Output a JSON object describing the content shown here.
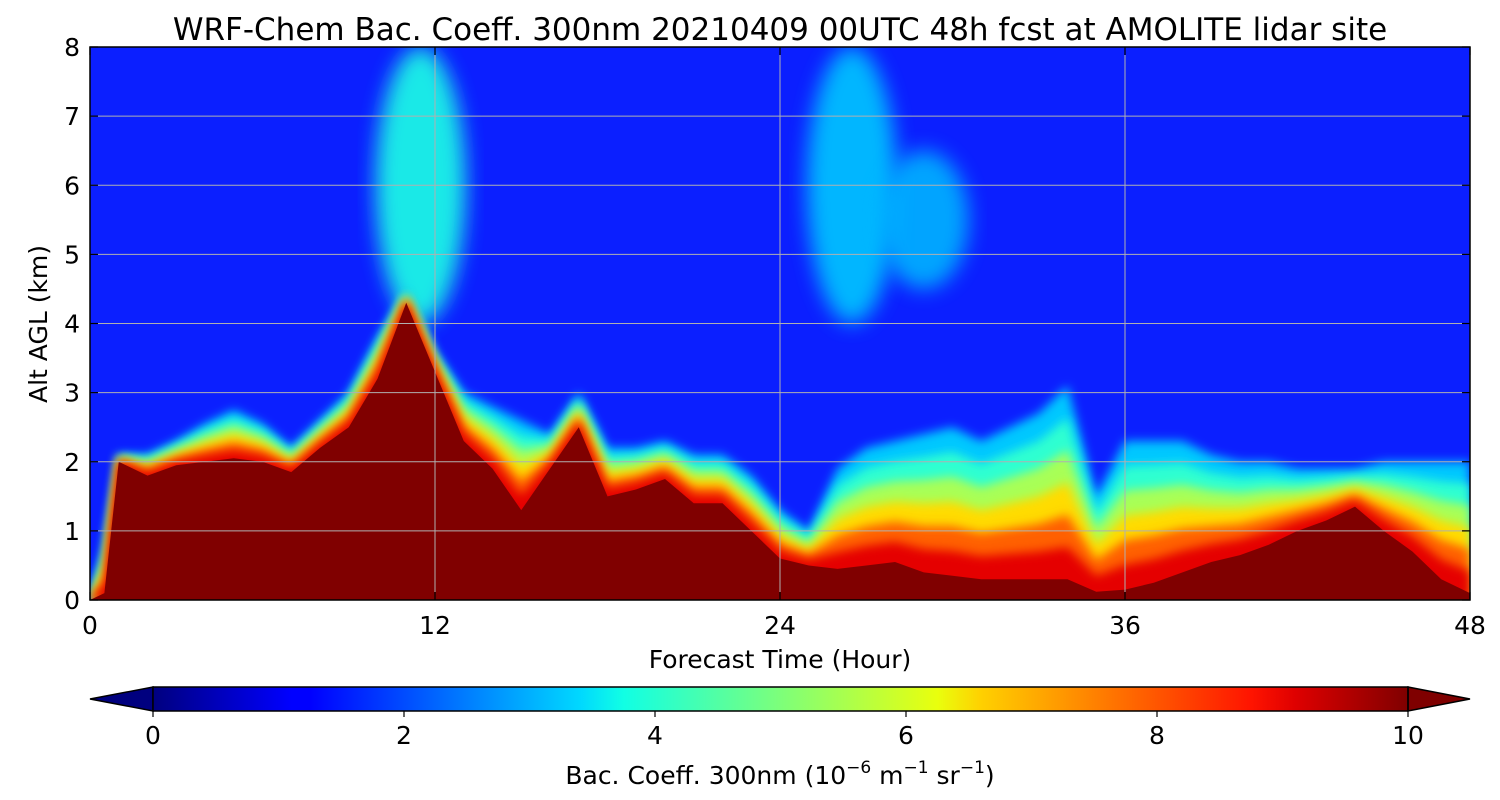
{
  "chart_data": {
    "type": "heatmap",
    "title": "WRF-Chem Bac. Coeff. 300nm  20210409 00UTC 48h fcst at AMOLITE lidar site",
    "xlabel": "Forecast Time (Hour)",
    "ylabel": "Alt AGL (km)",
    "xlim": [
      0,
      48
    ],
    "ylim": [
      0,
      8
    ],
    "xticks": [
      "0",
      "12",
      "24",
      "36",
      "48"
    ],
    "yticks": [
      "0",
      "1",
      "2",
      "3",
      "4",
      "5",
      "6",
      "7",
      "8"
    ],
    "grid": true,
    "colorbar": {
      "label": "Bac. Coeff. 300nm  (10",
      "label_exp1": "−6",
      "label_mid": " m",
      "label_exp2": "−1",
      "label_mid2": " sr",
      "label_exp3": "−1",
      "label_end": ")",
      "ticks": [
        "0",
        "2",
        "4",
        "6",
        "8",
        "10"
      ],
      "range": [
        0,
        10
      ],
      "extend": "both",
      "colormap": "jet",
      "orientation": "horizontal"
    },
    "x": [
      0,
      0.5,
      1,
      2,
      3,
      4,
      5,
      6,
      7,
      8,
      9,
      10,
      11,
      12,
      13,
      14,
      15,
      16,
      17,
      18,
      19,
      20,
      21,
      22,
      23,
      24,
      25,
      26,
      27,
      28,
      29,
      30,
      31,
      32,
      33,
      34,
      35,
      36,
      37,
      38,
      39,
      40,
      41,
      42,
      43,
      44,
      45,
      46,
      47,
      48
    ],
    "thick_layer_top_km": [
      0,
      0.1,
      2.0,
      1.8,
      1.95,
      2.0,
      2.05,
      2.0,
      1.85,
      2.2,
      2.5,
      3.2,
      4.3,
      3.3,
      2.3,
      1.9,
      1.3,
      1.9,
      2.5,
      1.5,
      1.6,
      1.75,
      1.4,
      1.4,
      1.0,
      0.6,
      0.5,
      0.45,
      0.5,
      0.55,
      0.4,
      0.35,
      0.3,
      0.3,
      0.3,
      0.3,
      0.12,
      0.15,
      0.25,
      0.4,
      0.55,
      0.65,
      0.8,
      1.0,
      1.15,
      1.35,
      1.0,
      0.7,
      0.3,
      0.1
    ],
    "moderate_layer_top_km": [
      0,
      0.8,
      2.1,
      2.1,
      2.3,
      2.55,
      2.75,
      2.55,
      2.2,
      2.6,
      3.0,
      3.8,
      4.5,
      3.6,
      3.0,
      2.8,
      2.6,
      2.4,
      3.0,
      2.2,
      2.2,
      2.3,
      2.1,
      2.1,
      1.8,
      1.3,
      1.0,
      1.9,
      2.2,
      2.3,
      2.4,
      2.5,
      2.3,
      2.5,
      2.7,
      3.1,
      1.5,
      2.3,
      2.3,
      2.3,
      2.1,
      2.0,
      2.0,
      1.9,
      1.9,
      1.9,
      2.0,
      2.0,
      2.0,
      2.0
    ],
    "background_aloft_value": 1.5,
    "plume_aloft": [
      {
        "x_center": 11.5,
        "y_range": [
          4,
          8
        ],
        "value": 4.0
      },
      {
        "x_center": 26.5,
        "y_range": [
          4,
          8
        ],
        "value": 3.2
      },
      {
        "x_center": 29,
        "y_range": [
          4.5,
          6.5
        ],
        "value": 3.0
      }
    ]
  }
}
